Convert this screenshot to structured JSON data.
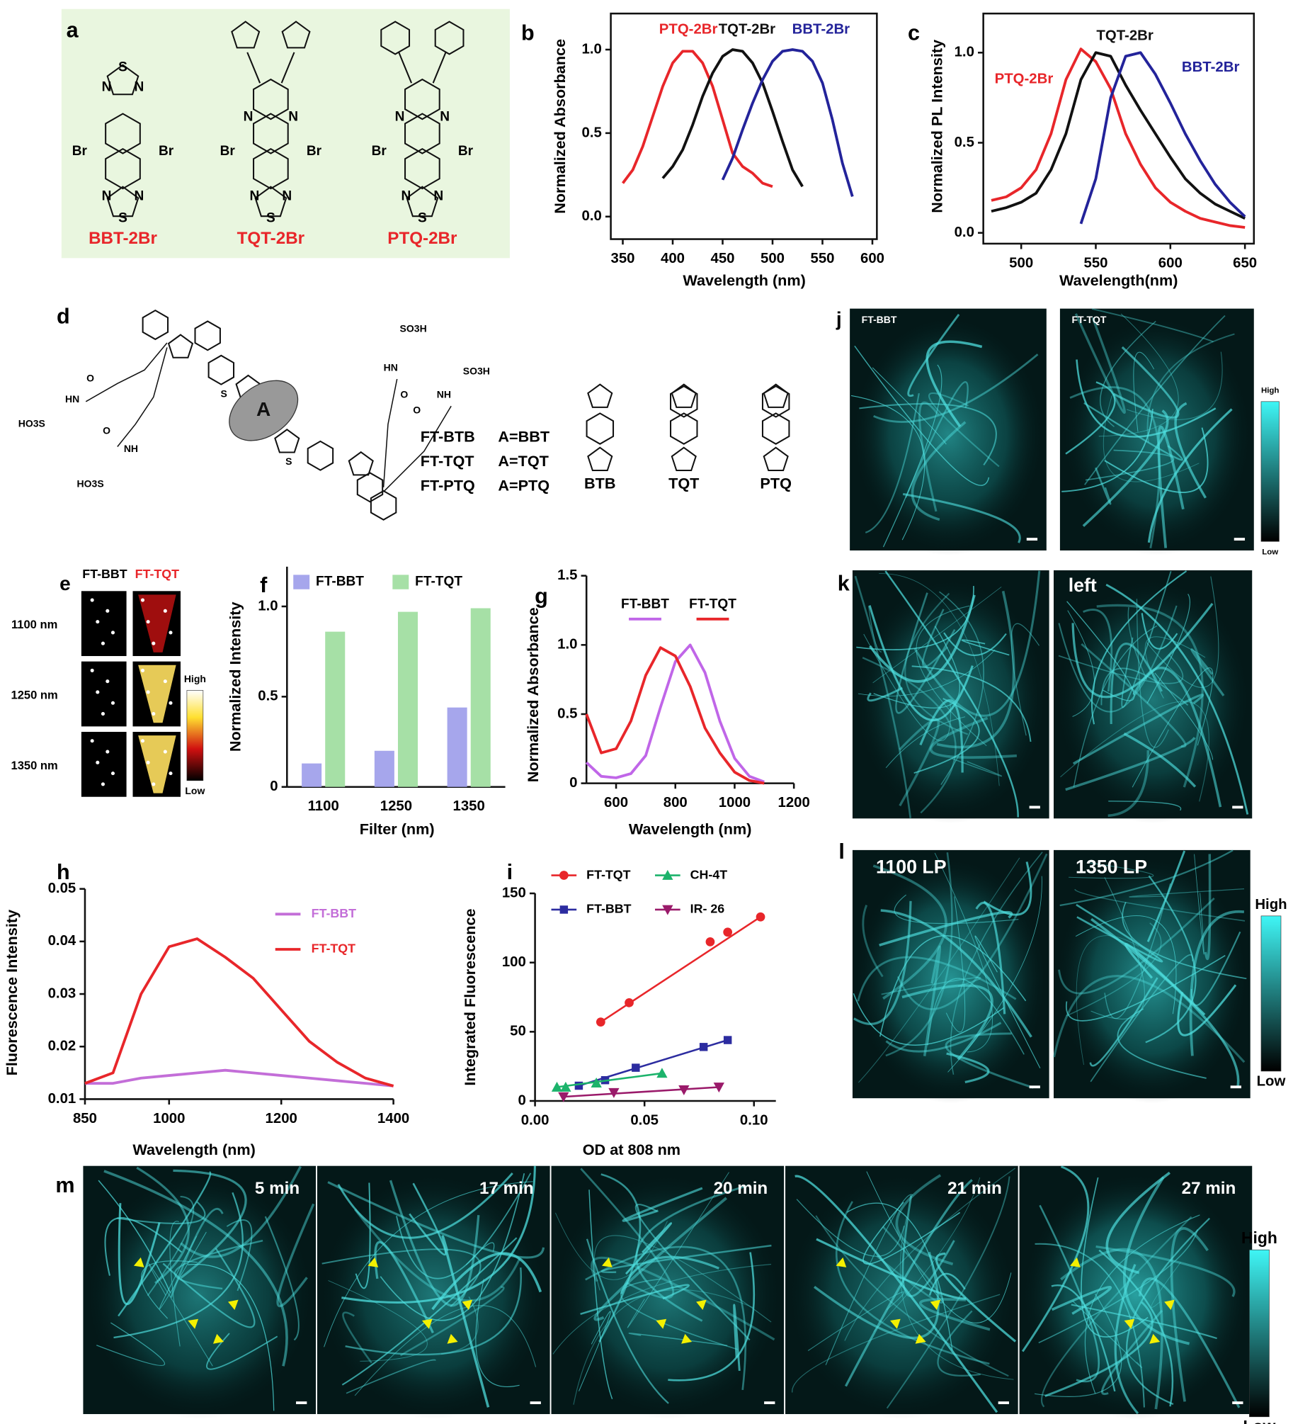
{
  "chart_data": [
    {
      "type": "line",
      "label": "b",
      "x_label": "Wavelength (nm)",
      "y_label": "Normalized Absorbance",
      "xlim": [
        338,
        604.5
      ],
      "ylim": [
        -0.135,
        1.216
      ],
      "xticks": [
        350,
        400,
        450,
        500,
        550,
        600
      ],
      "yticks": [
        {
          "value": 0,
          "label": "0.0"
        },
        0.5,
        {
          "value": 1,
          "label": "1.0"
        }
      ],
      "x": [
        350,
        360,
        370,
        380,
        390,
        400,
        410,
        420,
        430,
        440,
        450,
        460,
        470,
        480,
        490,
        500,
        510,
        520,
        530,
        540,
        550,
        560,
        570,
        580
      ],
      "series": [
        {
          "name": "PTQ-2Br",
          "color": "#e8262a",
          "values": [
            0.2,
            0.28,
            0.42,
            0.6,
            0.78,
            0.92,
            0.99,
            0.99,
            0.92,
            0.78,
            0.58,
            0.38,
            0.3,
            0.26,
            0.2,
            0.18,
            null,
            null,
            null,
            null,
            null,
            null,
            null,
            null
          ]
        },
        {
          "name": "TQT-2Br",
          "color": "#111111",
          "values": [
            null,
            null,
            null,
            null,
            0.23,
            0.3,
            0.4,
            0.55,
            0.72,
            0.86,
            0.96,
            1.0,
            0.99,
            0.92,
            0.8,
            0.63,
            0.45,
            0.28,
            0.18,
            null,
            null,
            null,
            null,
            null
          ]
        },
        {
          "name": "BBT-2Br",
          "color": "#23239a",
          "values": [
            null,
            null,
            null,
            null,
            null,
            null,
            null,
            null,
            null,
            null,
            0.22,
            0.35,
            0.52,
            0.68,
            0.82,
            0.93,
            0.99,
            1.0,
            0.99,
            0.93,
            0.8,
            0.58,
            0.32,
            0.12
          ]
        }
      ]
    },
    {
      "type": "line",
      "label": "c",
      "x_label": "Wavelength(nm)",
      "y_label": "Normalized PL Intensity",
      "xlim": [
        474.6,
        656
      ],
      "ylim": [
        -0.06,
        1.217
      ],
      "xticks": [
        500,
        550,
        600,
        650
      ],
      "yticks": [
        {
          "value": 0,
          "label": "0.0"
        },
        0.5,
        {
          "value": 1,
          "label": "1.0"
        }
      ],
      "x": [
        480,
        490,
        500,
        510,
        520,
        530,
        540,
        550,
        560,
        570,
        580,
        590,
        600,
        610,
        620,
        630,
        640,
        650
      ],
      "series": [
        {
          "name": "PTQ-2Br",
          "color": "#e8262a",
          "values": [
            0.18,
            0.2,
            0.25,
            0.35,
            0.55,
            0.85,
            1.02,
            0.95,
            0.8,
            0.55,
            0.38,
            0.25,
            0.17,
            0.12,
            0.08,
            0.06,
            0.04,
            0.03
          ]
        },
        {
          "name": "TQT-2Br",
          "color": "#111111",
          "values": [
            0.12,
            0.14,
            0.17,
            0.22,
            0.35,
            0.55,
            0.85,
            1.0,
            0.98,
            0.82,
            0.68,
            0.55,
            0.42,
            0.3,
            0.22,
            0.16,
            0.12,
            0.08
          ]
        },
        {
          "name": "BBT-2Br",
          "color": "#23239a",
          "values": [
            null,
            null,
            null,
            null,
            null,
            null,
            0.05,
            0.3,
            0.75,
            0.98,
            1.0,
            0.88,
            0.72,
            0.55,
            0.4,
            0.27,
            0.17,
            0.09
          ]
        }
      ]
    },
    {
      "type": "bar",
      "label": "f",
      "x_label": "Filter (nm)",
      "y_label": "Normalized Intensity",
      "ylim": [
        0,
        1.22
      ],
      "yticks": [
        0,
        0.5,
        {
          "value": 1,
          "label": "1.0"
        }
      ],
      "categories": [
        "1100",
        "1250",
        "1350"
      ],
      "series": [
        {
          "name": "FT-BBT",
          "color": "#a6a6ec",
          "values": [
            0.13,
            0.2,
            0.44
          ]
        },
        {
          "name": "FT-TQT",
          "color": "#a6e0a6",
          "values": [
            0.86,
            0.97,
            0.99
          ]
        }
      ]
    },
    {
      "type": "line",
      "label": "g",
      "x_label": "Wavelength (nm)",
      "y_label": "Normalized Absorbance",
      "xlim": [
        500,
        1200
      ],
      "ylim": [
        0,
        1.5
      ],
      "xticks": [
        600,
        800,
        1000,
        1200
      ],
      "yticks": [
        0,
        0.5,
        {
          "value": 1,
          "label": "1.0"
        },
        1.5
      ],
      "x": [
        500,
        550,
        600,
        650,
        700,
        750,
        800,
        850,
        900,
        950,
        1000,
        1050,
        1100
      ],
      "series": [
        {
          "name": "FT-BBT",
          "color": "#c066e8",
          "values": [
            0.15,
            0.05,
            0.04,
            0.07,
            0.2,
            0.55,
            0.88,
            1.0,
            0.8,
            0.45,
            0.18,
            0.05,
            0.01
          ]
        },
        {
          "name": "FT-TQT",
          "color": "#e8262a",
          "values": [
            0.5,
            0.22,
            0.25,
            0.45,
            0.78,
            0.98,
            0.92,
            0.7,
            0.4,
            0.22,
            0.08,
            0.02,
            0.0
          ]
        }
      ]
    },
    {
      "type": "line",
      "label": "h",
      "x_label": "Wavelength (nm)",
      "y_label": "Fluorescence Intensity",
      "xlim": [
        850,
        1400
      ],
      "ylim": [
        0.01,
        0.05
      ],
      "xticks": [
        850,
        1000,
        1200,
        1400
      ],
      "yticks": [
        0.01,
        0.02,
        0.03,
        0.04,
        0.05
      ],
      "x": [
        850,
        900,
        950,
        1000,
        1050,
        1100,
        1150,
        1200,
        1250,
        1300,
        1350,
        1400
      ],
      "series": [
        {
          "name": "FT-BBT",
          "color": "#c36ed8",
          "values": [
            0.013,
            0.013,
            0.014,
            0.0145,
            0.015,
            0.0155,
            0.015,
            0.0145,
            0.014,
            0.0135,
            0.013,
            0.0125
          ]
        },
        {
          "name": "FT-TQT",
          "color": "#e8262a",
          "values": [
            0.013,
            0.015,
            0.03,
            0.039,
            0.0405,
            0.037,
            0.033,
            0.027,
            0.021,
            0.017,
            0.014,
            0.0125
          ]
        }
      ]
    },
    {
      "type": "scatter",
      "label": "i",
      "x_label": "OD at  808 nm",
      "y_label": "Integrated Fluorescence",
      "xlim": [
        0,
        0.11
      ],
      "ylim": [
        0,
        150
      ],
      "xticks": [
        {
          "value": 0,
          "label": "0.00"
        },
        0.05,
        {
          "value": 0.1,
          "label": "0.10"
        }
      ],
      "yticks": [
        0,
        50,
        100,
        150
      ],
      "series": [
        {
          "name": "FT-TQT",
          "color": "#e8262a",
          "marker": "circle",
          "x": [
            0.03,
            0.043,
            0.08,
            0.088,
            0.103
          ],
          "values": [
            57,
            71,
            115,
            122,
            133
          ]
        },
        {
          "name": "FT-BBT",
          "color": "#2c2ca0",
          "marker": "square",
          "x": [
            0.02,
            0.032,
            0.046,
            0.077,
            0.088
          ],
          "values": [
            11,
            15,
            24,
            39,
            44
          ]
        },
        {
          "name": "CH-4T",
          "color": "#1cb36b",
          "marker": "triangle-up",
          "x": [
            0.01,
            0.014,
            0.028,
            0.058
          ],
          "values": [
            10,
            10,
            13,
            20
          ]
        },
        {
          "name": "IR- 26",
          "color": "#9a1a6a",
          "marker": "triangle-down",
          "x": [
            0.013,
            0.036,
            0.068,
            0.084
          ],
          "values": [
            3,
            6,
            8,
            10
          ]
        }
      ]
    }
  ],
  "panels": {
    "a": {
      "label": "a",
      "names": [
        "BBT-2Br",
        "TQT-2Br",
        "PTQ-2Br"
      ],
      "br": "Br",
      "n": "N",
      "s": "S"
    },
    "d": {
      "label": "d",
      "a": "A",
      "so3h": "SO3H",
      "ho3s": "HO3S",
      "nh": "NH",
      "hn": "HN",
      "o": "O",
      "s": "S",
      "n": "N",
      "polymers": [
        "FT-BTB",
        "FT-TQT",
        "FT-PTQ"
      ],
      "acceptors": [
        "A=BBT",
        "A=TQT",
        "A=PTQ"
      ],
      "units": [
        "BTB",
        "TQT",
        "PTQ"
      ]
    },
    "e": {
      "label": "e",
      "columns": [
        "FT-BBT",
        "FT-TQT"
      ],
      "rows": [
        "1100 nm",
        "1250 nm",
        "1350 nm"
      ],
      "high": "High",
      "low": "Low"
    },
    "j": {
      "label": "j",
      "images": [
        "FT-BBT",
        "FT-TQT"
      ],
      "high": "High",
      "low": "Low"
    },
    "k": {
      "label": "k",
      "image_label": "left"
    },
    "l": {
      "label": "l",
      "images": [
        "1100 LP",
        "1350 LP"
      ],
      "high": "High",
      "low": "Low"
    },
    "m": {
      "label": "m",
      "times": [
        "5 min",
        "17 min",
        "20 min",
        "21 min",
        "27 min"
      ],
      "high": "High",
      "low": "Low"
    }
  }
}
